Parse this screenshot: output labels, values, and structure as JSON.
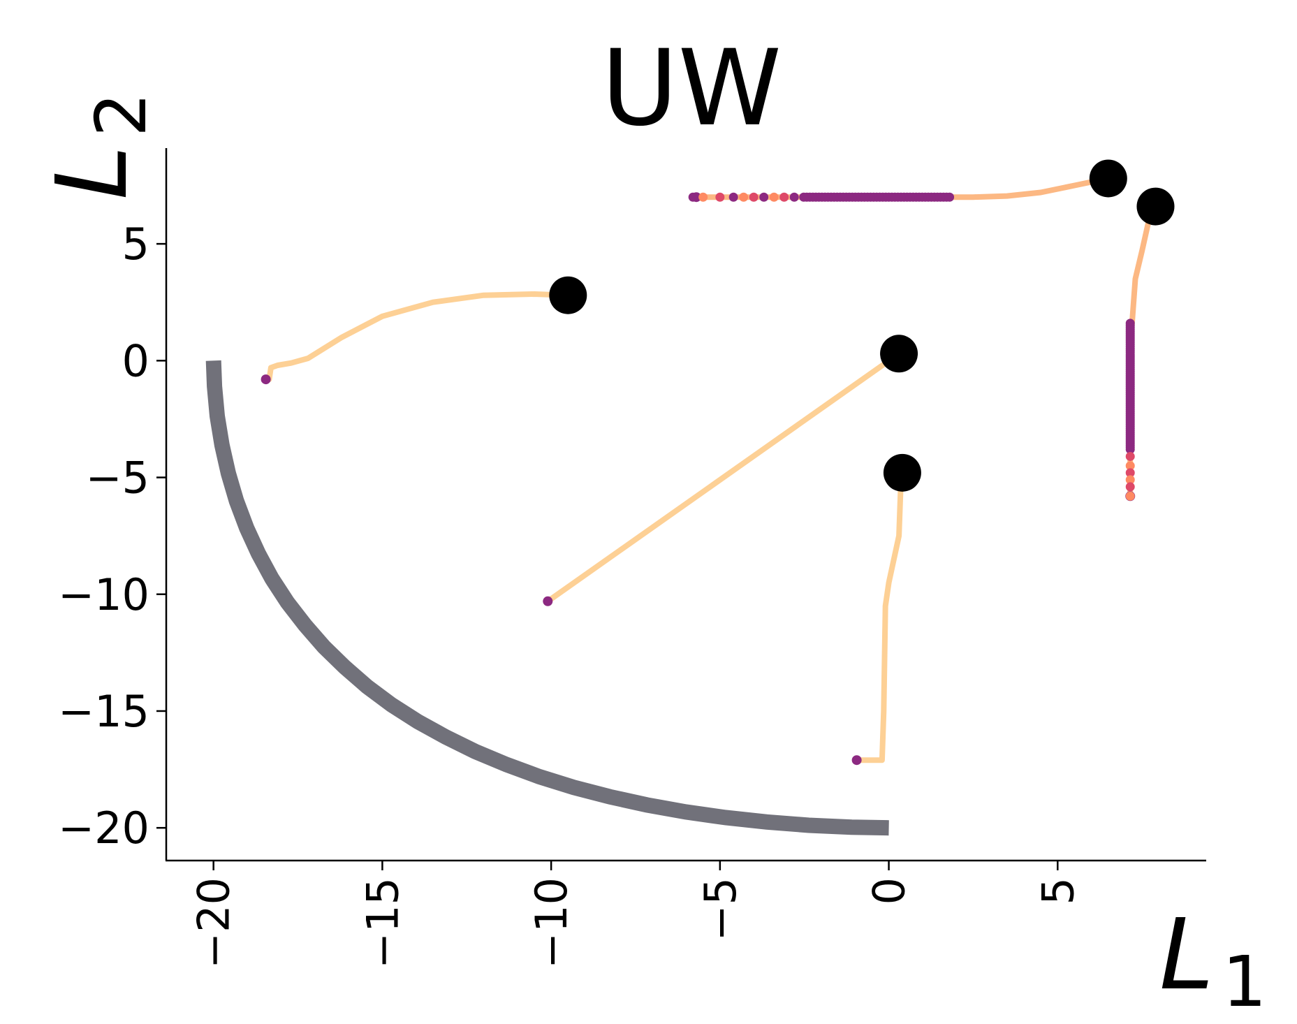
{
  "chart_data": {
    "type": "line",
    "title": "UW",
    "xlabel": "L",
    "xlabel_sub": "1",
    "ylabel": "L",
    "ylabel_sub": "2",
    "xlim": [
      -21.4,
      9.4
    ],
    "ylim": [
      -21.4,
      9.1
    ],
    "xticks": [
      -20,
      -15,
      -10,
      -5,
      0,
      5
    ],
    "xtick_labels": [
      "−20",
      "−15",
      "−10",
      "−5",
      "0",
      "5"
    ],
    "yticks": [
      5,
      0,
      -5,
      -10,
      -15,
      -20
    ],
    "ytick_labels": [
      "5",
      "0",
      "−5",
      "−10",
      "−15",
      "−20"
    ],
    "grid": false,
    "colors": {
      "front": "#71717a",
      "path_light": "#fdd095",
      "path_mid": "#fcb883",
      "dot_purple": "#8c2981",
      "dot_pink": "#de4968",
      "dot_coral": "#fe8a62",
      "start": "#000000"
    },
    "pareto_front": {
      "x": [
        -20,
        -19.97,
        -19.89,
        -19.75,
        -19.56,
        -19.32,
        -19.02,
        -18.67,
        -18.27,
        -17.81,
        -17.29,
        -16.73,
        -16.11,
        -15.45,
        -14.73,
        -13.95,
        -13.12,
        -12.25,
        -11.32,
        -10.35,
        -9.33,
        -8.26,
        -7.16,
        -6.01,
        -4.83,
        -3.61,
        -2.37,
        -1.1,
        0
      ],
      "y": [
        0,
        -1.1,
        -2.37,
        -3.61,
        -4.83,
        -6.01,
        -7.16,
        -8.26,
        -9.33,
        -10.35,
        -11.32,
        -12.25,
        -13.12,
        -13.95,
        -14.73,
        -15.45,
        -16.11,
        -16.73,
        -17.29,
        -17.81,
        -18.27,
        -18.67,
        -19.02,
        -19.32,
        -19.56,
        -19.75,
        -19.89,
        -19.97,
        -20
      ]
    },
    "trajectories": [
      {
        "start": [
          -9.5,
          2.8
        ],
        "x": [
          -9.5,
          -10.5,
          -12,
          -13.5,
          -15,
          -16.2,
          -17.2,
          -17.7,
          -18.1,
          -18.3,
          -18.35,
          -18.45
        ],
        "y": [
          2.8,
          2.85,
          2.8,
          2.5,
          1.9,
          1.0,
          0.1,
          -0.1,
          -0.2,
          -0.3,
          -0.8,
          -0.8
        ]
      },
      {
        "start": [
          0.3,
          0.3
        ],
        "x": [
          0.3,
          -10.1
        ],
        "y": [
          0.3,
          -10.3
        ]
      },
      {
        "start": [
          0.4,
          -4.8
        ],
        "x": [
          0.4,
          0.35,
          0.3,
          0.0,
          -0.1,
          -0.15,
          -0.2,
          -0.95
        ],
        "y": [
          -4.8,
          -5.5,
          -7.5,
          -9.5,
          -10.5,
          -15,
          -17.1,
          -17.1
        ]
      },
      {
        "start": [
          6.5,
          7.8
        ],
        "x": [
          6.5,
          5.5,
          4.5,
          3.5,
          2.5,
          1.8,
          -1.0,
          -5.7
        ],
        "y": [
          7.8,
          7.5,
          7.2,
          7.05,
          7.0,
          7.0,
          7.0,
          7.0
        ]
      },
      {
        "start": [
          7.9,
          6.6
        ],
        "x": [
          7.9,
          7.7,
          7.5,
          7.3,
          7.2,
          7.15,
          7.15,
          7.15
        ],
        "y": [
          6.6,
          6.0,
          4.7,
          3.5,
          1.5,
          0,
          -3,
          -5.8
        ]
      }
    ]
  }
}
